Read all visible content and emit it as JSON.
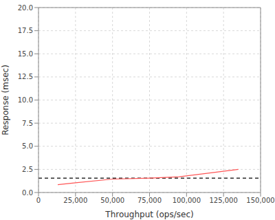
{
  "chart_data": {
    "type": "line",
    "x_label": "Throughput (ops/sec)",
    "y_label": "Response (msec)",
    "series": [
      {
        "color": "#ff5555",
        "x": [
          13000,
          25000,
          50000,
          75000,
          95000,
          110000,
          135000
        ],
        "values": [
          0.85,
          1.05,
          1.45,
          1.55,
          1.7,
          2.0,
          2.5
        ]
      }
    ],
    "reference_lines": [
      {
        "y": 1.55,
        "color": "#000000",
        "line_style": "dashed"
      }
    ],
    "xlim": [
      0,
      150000
    ],
    "xticks": [
      0,
      {
        "value": 25000,
        "label": "25,000"
      },
      {
        "value": 50000,
        "label": "50,000"
      },
      {
        "value": 75000,
        "label": "75,000"
      },
      {
        "value": 100000,
        "label": "100,000"
      },
      {
        "value": 125000,
        "label": "125,000"
      },
      {
        "value": 150000,
        "label": "150,000"
      }
    ],
    "ylim": [
      0,
      20
    ],
    "yticks": [
      {
        "value": 0,
        "label": "0.0"
      },
      2.5,
      {
        "value": 5,
        "label": "5.0"
      },
      7.5,
      {
        "value": 10,
        "label": "10.0"
      },
      12.5,
      {
        "value": 15,
        "label": "15.0"
      },
      17.5,
      {
        "value": 20,
        "label": "20.0"
      }
    ],
    "grid": true
  }
}
